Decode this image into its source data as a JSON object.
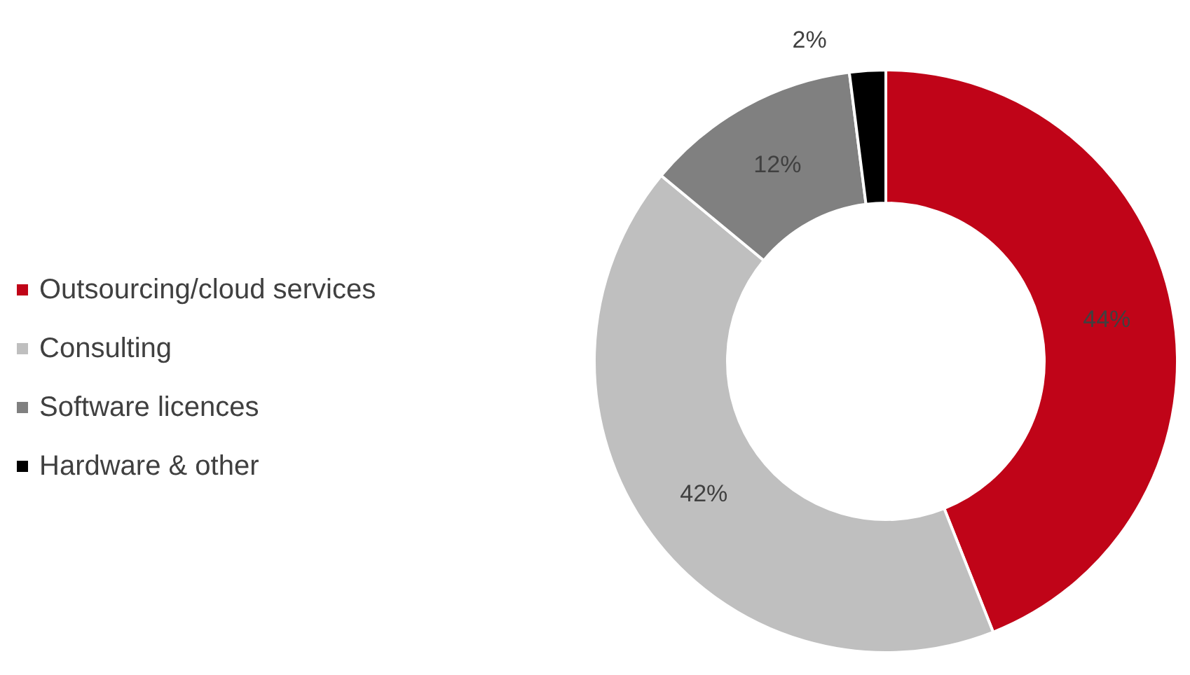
{
  "chart_data": {
    "type": "donut",
    "categories": [
      "Outsourcing/cloud services",
      "Consulting",
      "Software licences",
      "Hardware & other"
    ],
    "values": [
      44,
      42,
      12,
      2
    ],
    "colors": [
      "#c00418",
      "#bfbfbf",
      "#808080",
      "#000000"
    ],
    "value_labels": [
      "44%",
      "42%",
      "12%",
      "2%"
    ],
    "legend": "left"
  }
}
